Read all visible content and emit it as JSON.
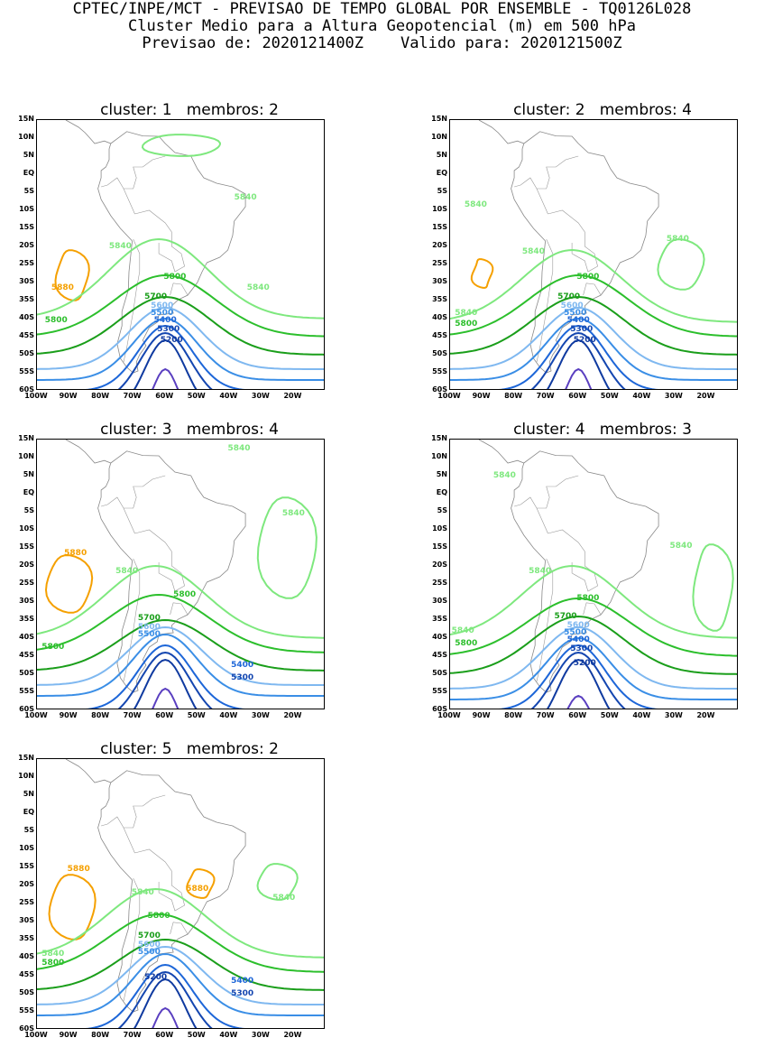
{
  "header": {
    "line1": "CPTEC/INPE/MCT - PREVISAO DE TEMPO GLOBAL POR ENSEMBLE - TQ0126L028",
    "line2": "Cluster Medio para a Altura Geopotencial (m) em 500 hPa",
    "line3": "Previsao de: 2020121400Z    Valido para: 2020121500Z"
  },
  "axes": {
    "lat_labels": [
      "15N",
      "10N",
      "5N",
      "EQ",
      "5S",
      "10S",
      "15S",
      "20S",
      "25S",
      "30S",
      "35S",
      "40S",
      "45S",
      "50S",
      "55S",
      "60S"
    ],
    "lon_labels": [
      "100W",
      "90W",
      "80W",
      "70W",
      "60W",
      "50W",
      "40W",
      "30W",
      "20W"
    ]
  },
  "colors": {
    "5880": "#f5a000",
    "5840": "#7ee87e",
    "5800": "#2cbf2c",
    "5700": "#1a9e1a",
    "5600": "#7fb8f0",
    "5500": "#3a8ee6",
    "5400": "#1d66d8",
    "5300": "#1446b0",
    "5200": "#0f3aa0",
    "5100": "#5a3fc0"
  },
  "panels": [
    {
      "title": "cluster: 1   membros: 2",
      "labels": [
        {
          "text": "5880",
          "lon": -92,
          "lat": -32,
          "level": "5880"
        },
        {
          "text": "5840",
          "lon": -74,
          "lat": -20.5,
          "level": "5840"
        },
        {
          "text": "5840",
          "lon": -35,
          "lat": -7,
          "level": "5840"
        },
        {
          "text": "5840",
          "lon": -31,
          "lat": -32,
          "level": "5840"
        },
        {
          "text": "5800",
          "lon": -57,
          "lat": -29,
          "level": "5800"
        },
        {
          "text": "5800",
          "lon": -94,
          "lat": -41,
          "level": "5800"
        },
        {
          "text": "5700",
          "lon": -63,
          "lat": -34.5,
          "level": "5700"
        },
        {
          "text": "5600",
          "lon": -61,
          "lat": -37,
          "level": "5600"
        },
        {
          "text": "5500",
          "lon": -61,
          "lat": -39,
          "level": "5500"
        },
        {
          "text": "5400",
          "lon": -60,
          "lat": -41,
          "level": "5400"
        },
        {
          "text": "5300",
          "lon": -59,
          "lat": -43.5,
          "level": "5300"
        },
        {
          "text": "5200",
          "lon": -58,
          "lat": -46.5,
          "level": "5200"
        }
      ]
    },
    {
      "title": "cluster: 2   membros: 4",
      "labels": [
        {
          "text": "5840",
          "lon": -92,
          "lat": -9,
          "level": "5840"
        },
        {
          "text": "5840",
          "lon": -29,
          "lat": -18.5,
          "level": "5840"
        },
        {
          "text": "5840",
          "lon": -74,
          "lat": -22,
          "level": "5840"
        },
        {
          "text": "5840",
          "lon": -95,
          "lat": -39,
          "level": "5840"
        },
        {
          "text": "5800",
          "lon": -57,
          "lat": -29,
          "level": "5800"
        },
        {
          "text": "5800",
          "lon": -95,
          "lat": -42,
          "level": "5800"
        },
        {
          "text": "5700",
          "lon": -63,
          "lat": -34.5,
          "level": "5700"
        },
        {
          "text": "5600",
          "lon": -62,
          "lat": -37,
          "level": "5600"
        },
        {
          "text": "5500",
          "lon": -61,
          "lat": -39,
          "level": "5500"
        },
        {
          "text": "5400",
          "lon": -60,
          "lat": -41,
          "level": "5400"
        },
        {
          "text": "5300",
          "lon": -59,
          "lat": -43.5,
          "level": "5300"
        },
        {
          "text": "5200",
          "lon": -58,
          "lat": -46.5,
          "level": "5200"
        }
      ]
    },
    {
      "title": "cluster: 3   membros: 4",
      "labels": [
        {
          "text": "5840",
          "lon": -37,
          "lat": 12,
          "level": "5840"
        },
        {
          "text": "5840",
          "lon": -20,
          "lat": -6,
          "level": "5840"
        },
        {
          "text": "5880",
          "lon": -88,
          "lat": -17,
          "level": "5880"
        },
        {
          "text": "5840",
          "lon": -72,
          "lat": -22,
          "level": "5840"
        },
        {
          "text": "5800",
          "lon": -54,
          "lat": -28.5,
          "level": "5800"
        },
        {
          "text": "5800",
          "lon": -95,
          "lat": -43,
          "level": "5800"
        },
        {
          "text": "5700",
          "lon": -65,
          "lat": -35,
          "level": "5700"
        },
        {
          "text": "5600",
          "lon": -65,
          "lat": -37.5,
          "level": "5600"
        },
        {
          "text": "5500",
          "lon": -65,
          "lat": -39.5,
          "level": "5500"
        },
        {
          "text": "5400",
          "lon": -36,
          "lat": -48,
          "level": "5400"
        },
        {
          "text": "5300",
          "lon": -36,
          "lat": -51.5,
          "level": "5300"
        }
      ]
    },
    {
      "title": "cluster: 4   membros: 3",
      "labels": [
        {
          "text": "5840",
          "lon": -83,
          "lat": 4.5,
          "level": "5840"
        },
        {
          "text": "5840",
          "lon": -28,
          "lat": -15,
          "level": "5840"
        },
        {
          "text": "5840",
          "lon": -72,
          "lat": -22,
          "level": "5840"
        },
        {
          "text": "5840",
          "lon": -96,
          "lat": -38.5,
          "level": "5840"
        },
        {
          "text": "5800",
          "lon": -57,
          "lat": -29.5,
          "level": "5800"
        },
        {
          "text": "5800",
          "lon": -95,
          "lat": -42,
          "level": "5800"
        },
        {
          "text": "5700",
          "lon": -64,
          "lat": -34.5,
          "level": "5700"
        },
        {
          "text": "5600",
          "lon": -60,
          "lat": -37,
          "level": "5600"
        },
        {
          "text": "5500",
          "lon": -61,
          "lat": -39,
          "level": "5500"
        },
        {
          "text": "5400",
          "lon": -60,
          "lat": -41,
          "level": "5400"
        },
        {
          "text": "5300",
          "lon": -59,
          "lat": -43.5,
          "level": "5300"
        },
        {
          "text": "5200",
          "lon": -58,
          "lat": -47.5,
          "level": "5200"
        }
      ]
    },
    {
      "title": "cluster: 5   membros: 2",
      "labels": [
        {
          "text": "5880",
          "lon": -87,
          "lat": -16,
          "level": "5880"
        },
        {
          "text": "5880",
          "lon": -50,
          "lat": -21.5,
          "level": "5880"
        },
        {
          "text": "5840",
          "lon": -67,
          "lat": -22.5,
          "level": "5840"
        },
        {
          "text": "5840",
          "lon": -23,
          "lat": -24,
          "level": "5840"
        },
        {
          "text": "5800",
          "lon": -62,
          "lat": -29,
          "level": "5800"
        },
        {
          "text": "5840",
          "lon": -95,
          "lat": -39.5,
          "level": "5840"
        },
        {
          "text": "5800",
          "lon": -95,
          "lat": -42,
          "level": "5800"
        },
        {
          "text": "5700",
          "lon": -65,
          "lat": -34.5,
          "level": "5700"
        },
        {
          "text": "5600",
          "lon": -65,
          "lat": -37,
          "level": "5600"
        },
        {
          "text": "5500",
          "lon": -65,
          "lat": -39,
          "level": "5500"
        },
        {
          "text": "5400",
          "lon": -36,
          "lat": -47,
          "level": "5400"
        },
        {
          "text": "5300",
          "lon": -36,
          "lat": -50.5,
          "level": "5300"
        },
        {
          "text": "5200",
          "lon": -63,
          "lat": -46,
          "level": "5200"
        }
      ]
    }
  ]
}
